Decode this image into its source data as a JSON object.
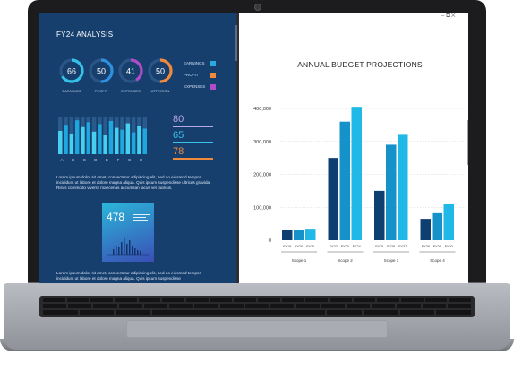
{
  "dashboard": {
    "title": "FY24 ANALYSIS",
    "rings": [
      {
        "value": "66",
        "label": "EARNINGS",
        "color": "#34c3e8"
      },
      {
        "value": "50",
        "label": "PROFIT",
        "color": "#2f8fe0"
      },
      {
        "value": "41",
        "label": "EXPENSES",
        "color": "#b04cc8"
      },
      {
        "value": "50",
        "label": "ATTRITION",
        "color": "#f08a3c"
      }
    ],
    "legend": [
      {
        "label": "EARNINGS",
        "color": "#2aa9de"
      },
      {
        "label": "PROFIT",
        "color": "#f08a3c"
      },
      {
        "label": "EXPENSES",
        "color": "#b04cc8"
      }
    ],
    "bar_letters": [
      "A",
      "B",
      "C",
      "D",
      "E",
      "F",
      "G",
      "H"
    ],
    "stats": [
      {
        "value": "80",
        "color": "#b9a7e8"
      },
      {
        "value": "65",
        "color": "#38c4e8"
      },
      {
        "value": "78",
        "color": "#f08a3c"
      }
    ],
    "paragraph_1": "Lorem ipsum dolor sit amet, consectetur adipiscing elit, sed do eiusmod tempor incididunt ut labore et dolore magna aliqua. Quis ipsum suspendisse ultrices gravida. Risus commodo viverra maecenas accumsan lacus vel facilisis.",
    "score": {
      "value": "478"
    },
    "paragraph_2": "Lorem ipsum dolor sit amet, consectetur adipiscing elit, sed do eiusmod tempor incididunt ut labore et dolore magna aliqua. Quis ipsum suspendisse"
  },
  "window": {
    "controls": "–  ⧉  ✕"
  },
  "chart_data": {
    "type": "bar",
    "title": "ANNUAL BUDGET PROJECTIONS",
    "groups": [
      "Scope 1",
      "Scope 2",
      "Scope 3",
      "Scope 4"
    ],
    "bar_labels": [
      [
        "FY19",
        "FY20",
        "FY21"
      ],
      [
        "FY22",
        "FY23",
        "FY24"
      ],
      [
        "FY25",
        "FY26",
        "FY27"
      ],
      [
        "FY28",
        "FY29",
        "FY30"
      ]
    ],
    "values": [
      [
        30000,
        32000,
        35000
      ],
      [
        250000,
        360000,
        405000
      ],
      [
        150000,
        290000,
        320000
      ],
      [
        65000,
        82000,
        110000
      ]
    ],
    "colors": [
      "#0e3f73",
      "#1592c9",
      "#20b8e6"
    ],
    "yticks": [
      "0",
      "100,000",
      "200,000",
      "300,000",
      "400,000"
    ],
    "ylim": [
      0,
      400000
    ],
    "grid": true
  }
}
